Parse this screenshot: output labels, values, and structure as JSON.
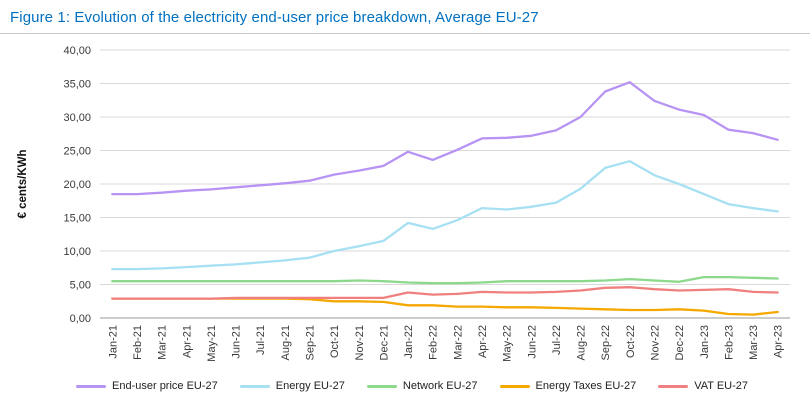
{
  "figure": {
    "title": "Figure 1:  Evolution of the electricity end-user price breakdown, Average EU-27"
  },
  "chart_data": {
    "type": "line",
    "title": "Evolution of the electricity end-user price breakdown, Average EU-27",
    "xlabel": "",
    "ylabel": "€ cents/KWh",
    "ylim": [
      0,
      40
    ],
    "ytick_step": 5,
    "ytick_labels": [
      "0,00",
      "5,00",
      "10,00",
      "15,00",
      "20,00",
      "25,00",
      "30,00",
      "35,00",
      "40,00"
    ],
    "grid": "horizontal",
    "legend_position": "bottom",
    "categories": [
      "Jan-21",
      "Feb-21",
      "Mar-21",
      "Apr-21",
      "May-21",
      "Jun-21",
      "Jul-21",
      "Aug-21",
      "Sep-21",
      "Oct-21",
      "Nov-21",
      "Dec-21",
      "Jan-22",
      "Feb-22",
      "Mar-22",
      "Apr-22",
      "May-22",
      "Jun-22",
      "Jul-22",
      "Aug-22",
      "Sep-22",
      "Oct-22",
      "Nov-22",
      "Dec-22",
      "Jan-23",
      "Feb-23",
      "Mar-23",
      "Apr-23"
    ],
    "series": [
      {
        "name": "End-user price EU-27",
        "color": "#b793f3",
        "values": [
          18.5,
          18.5,
          18.7,
          19.0,
          19.2,
          19.5,
          19.8,
          20.1,
          20.5,
          21.4,
          22.0,
          22.7,
          24.8,
          23.6,
          25.1,
          26.8,
          26.9,
          27.2,
          28.0,
          30.0,
          33.8,
          35.2,
          32.4,
          31.1,
          30.3,
          28.1,
          27.6,
          26.6
        ]
      },
      {
        "name": "Energy EU-27",
        "color": "#a6e0f2",
        "values": [
          7.3,
          7.3,
          7.4,
          7.6,
          7.8,
          8.0,
          8.3,
          8.6,
          9.0,
          10.0,
          10.7,
          11.5,
          14.2,
          13.3,
          14.6,
          16.4,
          16.2,
          16.6,
          17.2,
          19.3,
          22.4,
          23.4,
          21.3,
          20.0,
          18.5,
          17.0,
          16.4,
          15.9
        ]
      },
      {
        "name": "Network EU-27",
        "color": "#8cd98c",
        "values": [
          5.5,
          5.5,
          5.5,
          5.5,
          5.5,
          5.5,
          5.5,
          5.5,
          5.5,
          5.5,
          5.6,
          5.5,
          5.3,
          5.2,
          5.2,
          5.3,
          5.5,
          5.5,
          5.5,
          5.5,
          5.6,
          5.8,
          5.6,
          5.4,
          6.1,
          6.1,
          6.0,
          5.9
        ]
      },
      {
        "name": "Energy Taxes EU-27",
        "color": "#f5a800",
        "values": [
          2.9,
          2.9,
          2.9,
          2.9,
          2.9,
          2.9,
          2.9,
          2.9,
          2.8,
          2.5,
          2.5,
          2.4,
          1.9,
          1.9,
          1.7,
          1.7,
          1.6,
          1.6,
          1.5,
          1.4,
          1.3,
          1.2,
          1.2,
          1.3,
          1.1,
          0.6,
          0.5,
          0.9
        ]
      },
      {
        "name": "VAT EU-27",
        "color": "#f08080",
        "values": [
          2.9,
          2.9,
          2.9,
          2.9,
          2.9,
          3.0,
          3.0,
          3.0,
          3.0,
          3.0,
          3.0,
          3.0,
          3.8,
          3.5,
          3.6,
          3.9,
          3.8,
          3.8,
          3.9,
          4.1,
          4.5,
          4.6,
          4.3,
          4.1,
          4.2,
          4.3,
          3.9,
          3.8
        ]
      }
    ]
  }
}
